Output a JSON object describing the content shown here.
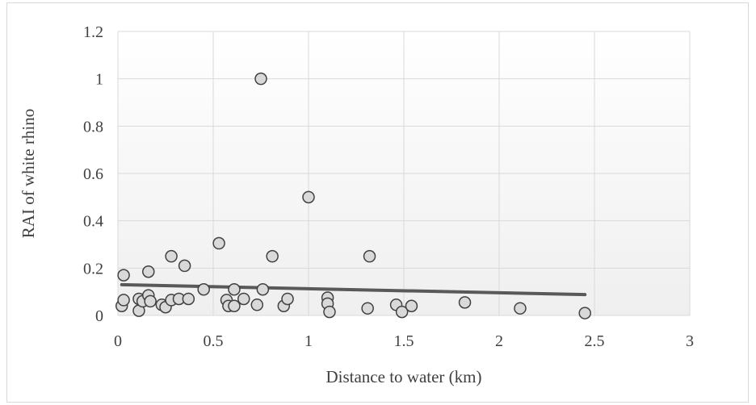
{
  "chart_data": {
    "type": "scatter",
    "title": "",
    "xlabel": "Distance to water (km)",
    "ylabel": "RAI of white rhino",
    "xlim": [
      0,
      3
    ],
    "ylim": [
      0,
      1.2
    ],
    "x_ticks": [
      "0",
      "0.5",
      "1",
      "1.5",
      "2",
      "2.5",
      "3"
    ],
    "y_ticks": [
      "0",
      "0.2",
      "0.4",
      "0.6",
      "0.8",
      "1",
      "1.2"
    ],
    "grid": true,
    "legend": "none",
    "series": [
      {
        "points": [
          [
            0.02,
            0.04
          ],
          [
            0.03,
            0.17
          ],
          [
            0.03,
            0.065
          ],
          [
            0.11,
            0.07
          ],
          [
            0.11,
            0.02
          ],
          [
            0.13,
            0.06
          ],
          [
            0.16,
            0.185
          ],
          [
            0.16,
            0.085
          ],
          [
            0.17,
            0.06
          ],
          [
            0.23,
            0.045
          ],
          [
            0.25,
            0.035
          ],
          [
            0.28,
            0.25
          ],
          [
            0.28,
            0.065
          ],
          [
            0.32,
            0.07
          ],
          [
            0.35,
            0.21
          ],
          [
            0.37,
            0.07
          ],
          [
            0.45,
            0.11
          ],
          [
            0.53,
            0.305
          ],
          [
            0.57,
            0.065
          ],
          [
            0.58,
            0.04
          ],
          [
            0.61,
            0.11
          ],
          [
            0.61,
            0.04
          ],
          [
            0.66,
            0.07
          ],
          [
            0.73,
            0.045
          ],
          [
            0.75,
            1.0
          ],
          [
            0.76,
            0.11
          ],
          [
            0.81,
            0.25
          ],
          [
            0.87,
            0.04
          ],
          [
            0.89,
            0.07
          ],
          [
            1.0,
            0.5
          ],
          [
            1.1,
            0.075
          ],
          [
            1.1,
            0.05
          ],
          [
            1.11,
            0.015
          ],
          [
            1.31,
            0.03
          ],
          [
            1.32,
            0.25
          ],
          [
            1.46,
            0.045
          ],
          [
            1.49,
            0.015
          ],
          [
            1.54,
            0.04
          ],
          [
            1.82,
            0.055
          ],
          [
            2.11,
            0.03
          ],
          [
            2.45,
            0.01
          ]
        ]
      }
    ],
    "trendline": {
      "type": "linear",
      "x": [
        0.02,
        2.45
      ],
      "y": [
        0.13,
        0.088
      ]
    },
    "colors": {
      "marker_fill": "#d9d9d9",
      "marker_edge": "#404040",
      "trendline": "#595959",
      "grid": "#d9d9d9",
      "plot_bg_top": "#ffffff",
      "plot_bg_bottom": "#efefef"
    }
  }
}
